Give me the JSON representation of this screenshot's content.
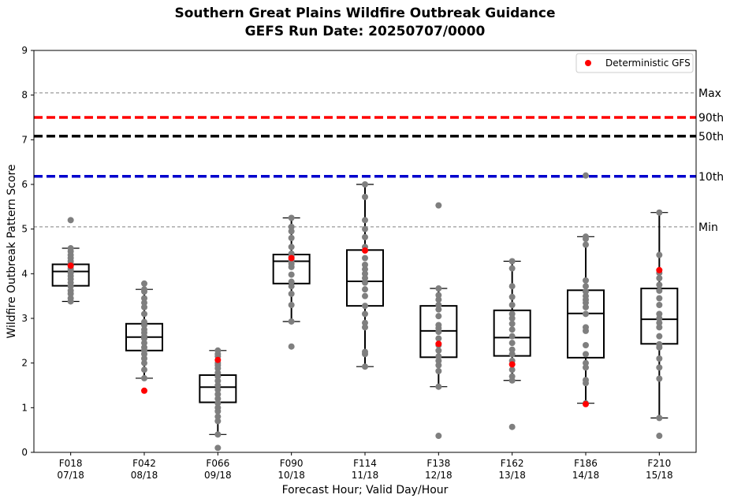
{
  "chart_data": {
    "type": "box",
    "title": "Southern Great Plains Wildfire Outbreak Guidance",
    "subtitle": "GEFS Run Date: 20250707/0000",
    "xlabel": "Forecast Hour; Valid Day/Hour",
    "ylabel": "Wildfire Outbreak Pattern Score",
    "ylim": [
      0,
      9
    ],
    "yticks": [
      0,
      1,
      2,
      3,
      4,
      5,
      6,
      7,
      8,
      9
    ],
    "grid": false,
    "legend_position": "top-right",
    "legend": [
      {
        "label": "Deterministic GFS",
        "color": "#ff0000"
      }
    ],
    "reference_lines": [
      {
        "label": "Max",
        "value": 8.05,
        "style": "dashed-thin",
        "color": "#808080"
      },
      {
        "label": "90th",
        "value": 7.5,
        "style": "dashed-thick",
        "color": "#ff0000"
      },
      {
        "label": "50th",
        "value": 7.08,
        "style": "dashed-thick",
        "color": "#000000"
      },
      {
        "label": "10th",
        "value": 6.18,
        "style": "dashed-thick",
        "color": "#0000cd"
      },
      {
        "label": "Min",
        "value": 5.05,
        "style": "dashed-thin",
        "color": "#808080"
      }
    ],
    "categories": [
      {
        "hour": "F018",
        "valid": "07/18",
        "q1": 3.73,
        "median": 4.05,
        "q3": 4.21,
        "whisker_low": 3.38,
        "whisker_high": 4.57,
        "gfs": 4.18,
        "members": [
          3.38,
          3.45,
          3.55,
          3.62,
          3.72,
          3.8,
          3.88,
          3.95,
          4.02,
          4.08,
          4.12,
          4.18,
          4.22,
          4.28,
          4.35,
          4.42,
          4.5,
          4.57,
          5.2
        ]
      },
      {
        "hour": "F042",
        "valid": "08/18",
        "q1": 2.28,
        "median": 2.58,
        "q3": 2.88,
        "whisker_low": 1.66,
        "whisker_high": 3.65,
        "gfs": 1.38,
        "members": [
          1.66,
          1.85,
          2.0,
          2.1,
          2.2,
          2.28,
          2.35,
          2.45,
          2.55,
          2.6,
          2.68,
          2.75,
          2.85,
          2.92,
          3.1,
          3.25,
          3.35,
          3.45,
          3.6,
          3.65,
          3.78
        ]
      },
      {
        "hour": "F066",
        "valid": "09/18",
        "q1": 1.12,
        "median": 1.46,
        "q3": 1.73,
        "whisker_low": 0.4,
        "whisker_high": 2.28,
        "gfs": 2.07,
        "members": [
          0.1,
          0.4,
          0.7,
          0.8,
          0.92,
          1.0,
          1.1,
          1.2,
          1.3,
          1.4,
          1.5,
          1.6,
          1.7,
          1.78,
          1.88,
          1.95,
          2.0,
          2.15,
          2.2,
          2.28
        ]
      },
      {
        "hour": "F090",
        "valid": "10/18",
        "q1": 3.78,
        "median": 4.28,
        "q3": 4.43,
        "whisker_low": 2.93,
        "whisker_high": 5.25,
        "gfs": 4.35,
        "members": [
          2.37,
          2.93,
          3.3,
          3.55,
          3.72,
          3.82,
          3.98,
          4.15,
          4.22,
          4.3,
          4.38,
          4.45,
          4.6,
          4.8,
          4.95,
          5.05,
          5.25
        ]
      },
      {
        "hour": "F114",
        "valid": "11/18",
        "q1": 3.28,
        "median": 3.83,
        "q3": 4.53,
        "whisker_low": 1.92,
        "whisker_high": 6.0,
        "gfs": 4.52,
        "members": [
          1.92,
          2.2,
          2.25,
          2.8,
          2.9,
          3.1,
          3.28,
          3.5,
          3.65,
          3.8,
          3.9,
          4.0,
          4.1,
          4.2,
          4.35,
          4.6,
          4.82,
          5.0,
          5.2,
          5.72,
          6.0
        ]
      },
      {
        "hour": "F138",
        "valid": "12/18",
        "q1": 2.13,
        "median": 2.72,
        "q3": 3.28,
        "whisker_low": 1.47,
        "whisker_high": 3.67,
        "gfs": 2.43,
        "members": [
          0.37,
          1.47,
          1.82,
          1.95,
          2.05,
          2.15,
          2.28,
          2.4,
          2.55,
          2.7,
          2.78,
          2.85,
          3.05,
          3.2,
          3.3,
          3.42,
          3.52,
          3.67,
          5.53
        ]
      },
      {
        "hour": "F162",
        "valid": "13/18",
        "q1": 2.16,
        "median": 2.57,
        "q3": 3.18,
        "whisker_low": 1.61,
        "whisker_high": 4.28,
        "gfs": 1.97,
        "members": [
          0.57,
          1.61,
          1.7,
          1.85,
          2.05,
          2.2,
          2.3,
          2.45,
          2.6,
          2.75,
          2.88,
          3.0,
          3.1,
          3.3,
          3.48,
          3.72,
          4.12,
          4.28
        ]
      },
      {
        "hour": "F186",
        "valid": "14/18",
        "q1": 2.12,
        "median": 3.11,
        "q3": 3.63,
        "whisker_low": 1.1,
        "whisker_high": 4.83,
        "gfs": 1.08,
        "members": [
          1.1,
          1.55,
          1.62,
          1.9,
          2.0,
          2.2,
          2.4,
          2.72,
          2.8,
          3.1,
          3.25,
          3.35,
          3.42,
          3.5,
          3.6,
          3.72,
          3.85,
          4.65,
          4.78,
          4.83,
          6.2
        ]
      },
      {
        "hour": "F210",
        "valid": "15/18",
        "q1": 2.43,
        "median": 2.98,
        "q3": 3.67,
        "whisker_low": 0.77,
        "whisker_high": 5.37,
        "gfs": 4.08,
        "members": [
          0.37,
          0.77,
          1.65,
          1.9,
          2.1,
          2.35,
          2.42,
          2.6,
          2.8,
          2.9,
          3.0,
          3.1,
          3.3,
          3.45,
          3.62,
          3.75,
          3.9,
          4.02,
          4.42,
          5.37
        ]
      }
    ]
  }
}
